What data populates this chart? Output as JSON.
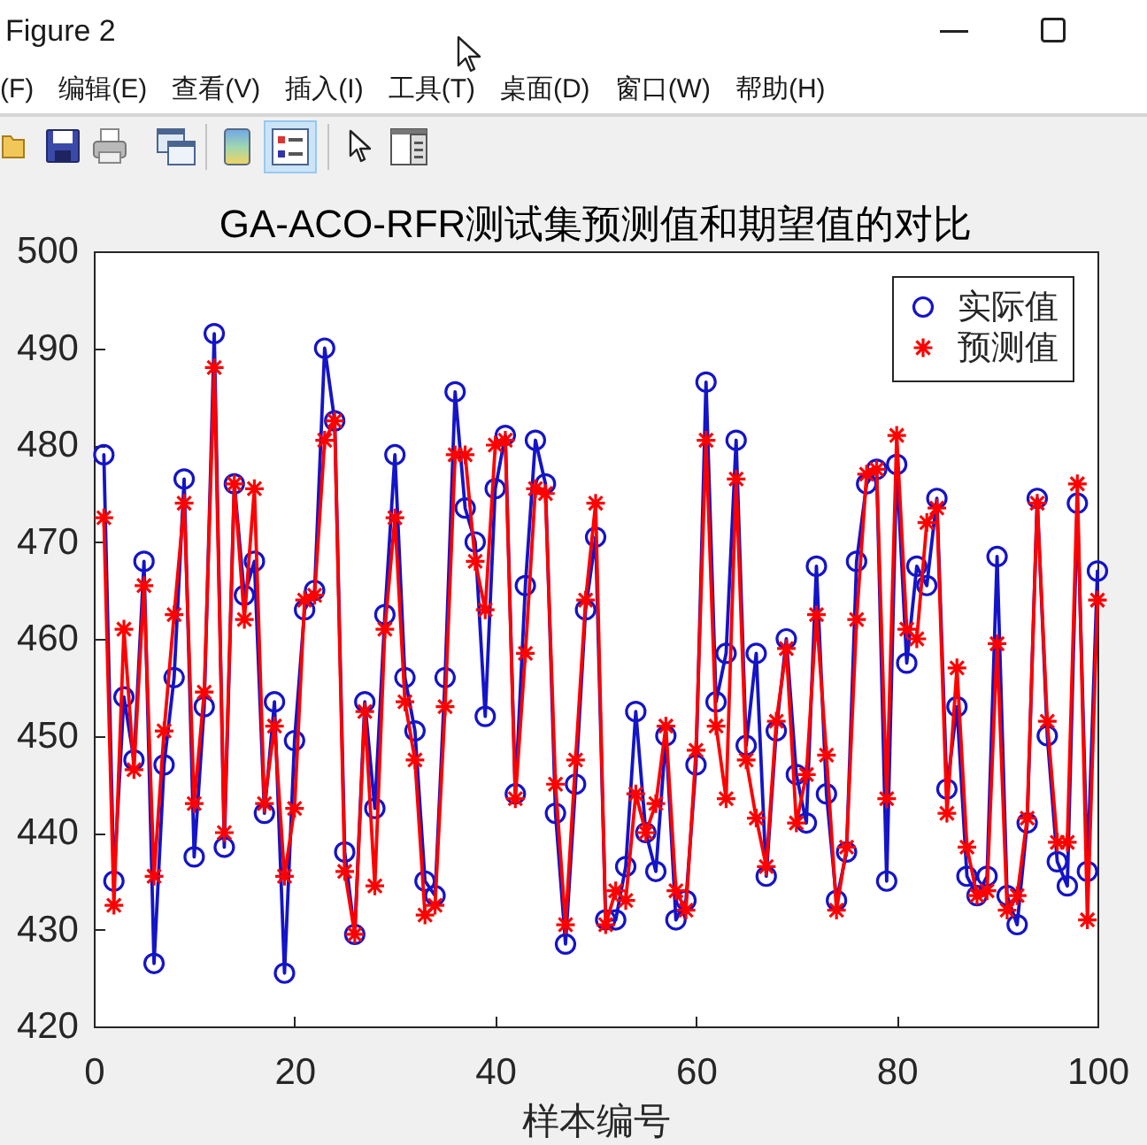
{
  "chart_data": {
    "type": "line",
    "title": "GA-ACO-RFR测试集预测值和期望值的对比",
    "xlabel": "样本编号",
    "annotations": [
      "Figure 2",
      "(F)",
      "编辑(E)",
      "查看(V)",
      "插入(I)",
      "工具(T)",
      "桌面(D)",
      "窗口(W)",
      "帮助(H)"
    ],
    "x": [
      1,
      2,
      3,
      4,
      5,
      6,
      7,
      8,
      9,
      10,
      11,
      12,
      13,
      14,
      15,
      16,
      17,
      18,
      19,
      20,
      21,
      22,
      23,
      24,
      25,
      26,
      27,
      28,
      29,
      30,
      31,
      32,
      33,
      34,
      35,
      36,
      37,
      38,
      39,
      40,
      41,
      42,
      43,
      44,
      45,
      46,
      47,
      48,
      49,
      50,
      51,
      52,
      53,
      54,
      55,
      56,
      57,
      58,
      59,
      60,
      61,
      62,
      63,
      64,
      65,
      66,
      67,
      68,
      69,
      70,
      71,
      72,
      73,
      74,
      75,
      76,
      77,
      78,
      79,
      80,
      81,
      82,
      83,
      84,
      85,
      86,
      87,
      88,
      89,
      90,
      91,
      92,
      93,
      94,
      95,
      96,
      97,
      98,
      99,
      100
    ],
    "series": [
      {
        "name": "实际值",
        "color": "#1414c8",
        "marker": "circle",
        "values": [
          479,
          435,
          454,
          447.5,
          468,
          426.5,
          447,
          456,
          476.5,
          437.5,
          453,
          491.5,
          438.5,
          476,
          464.5,
          468,
          442,
          453.5,
          425.5,
          449.5,
          463,
          465,
          490,
          482.5,
          438,
          429.5,
          453.5,
          442.5,
          462.5,
          479,
          456,
          450.5,
          435,
          433.5,
          456,
          485.5,
          473.5,
          470,
          452,
          475.5,
          481,
          444,
          465.5,
          480.5,
          476,
          442,
          428.5,
          445,
          463,
          470.5,
          431,
          431,
          436.5,
          452.5,
          440,
          436,
          450,
          431,
          433,
          447,
          486.5,
          453.5,
          458.5,
          480.5,
          449,
          458.5,
          435.5,
          450.5,
          460,
          446,
          441,
          467.5,
          444,
          433,
          438,
          468,
          476,
          477.5,
          435,
          478,
          457.5,
          467.5,
          465.5,
          474.5,
          444.5,
          453,
          435.5,
          433.5,
          435.5,
          468.5,
          433.5,
          430.5,
          441,
          474.5,
          450,
          437,
          434.5,
          474,
          436,
          467
        ]
      },
      {
        "name": "预测值",
        "color": "#ff0000",
        "marker": "cross",
        "values": [
          472.5,
          432.5,
          461,
          446.5,
          465.5,
          435.5,
          450.5,
          462.5,
          474,
          443,
          454.5,
          488,
          440,
          476,
          462,
          475.5,
          443,
          451,
          435.5,
          442.5,
          464,
          464.5,
          480.5,
          482.5,
          436,
          429.5,
          452.5,
          434.5,
          461,
          472.5,
          453.5,
          447.5,
          431.5,
          432.5,
          453,
          479,
          479,
          468,
          463,
          480,
          480.5,
          443.5,
          458.5,
          475.5,
          475,
          445,
          430.5,
          447.5,
          464,
          474,
          430.5,
          434,
          433,
          444,
          440,
          443,
          451,
          434,
          432,
          448.5,
          480.5,
          451,
          443.5,
          476.5,
          447.5,
          441.5,
          436.5,
          451.5,
          459,
          441,
          446,
          462.5,
          448,
          432,
          438.5,
          462,
          477,
          477.5,
          443.5,
          481,
          461,
          460,
          472,
          473.5,
          442,
          457,
          438.5,
          433.5,
          434,
          459.5,
          432,
          433.5,
          441.5,
          474,
          451.5,
          439,
          439,
          476,
          431,
          464
        ]
      }
    ],
    "xlim": [
      0,
      100
    ],
    "ylim": [
      420,
      500
    ],
    "xticks": [
      0,
      20,
      40,
      60,
      80,
      100
    ],
    "yticks": [
      420,
      430,
      440,
      450,
      460,
      470,
      480,
      490,
      500
    ],
    "legend": "top right"
  }
}
